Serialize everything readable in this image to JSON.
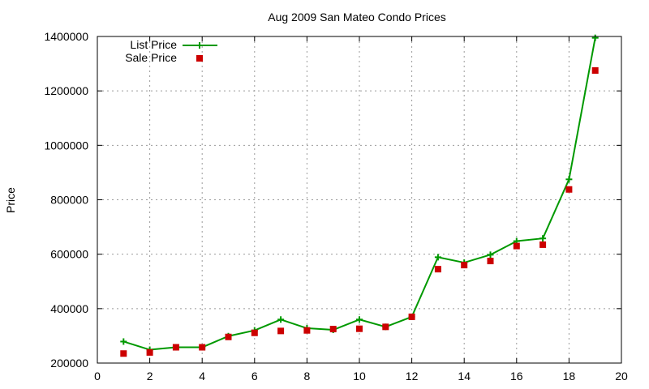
{
  "chart_data": {
    "type": "line",
    "title": "Aug 2009 San Mateo Condo Prices",
    "xlabel": "",
    "ylabel": "Price",
    "xlim": [
      0,
      20
    ],
    "ylim": [
      200000,
      1400000
    ],
    "x_ticks": [
      0,
      2,
      4,
      6,
      8,
      10,
      12,
      14,
      16,
      18,
      20
    ],
    "y_ticks": [
      200000,
      400000,
      600000,
      800000,
      1000000,
      1200000,
      1400000
    ],
    "grid": true,
    "legend_position": "top-left",
    "x": [
      1,
      2,
      3,
      4,
      5,
      6,
      7,
      8,
      9,
      10,
      11,
      12,
      13,
      14,
      15,
      16,
      17,
      18,
      19
    ],
    "series": [
      {
        "name": "List Price",
        "style": "line-plus",
        "color": "#009900",
        "values": [
          279000,
          249000,
          258000,
          258000,
          299000,
          320000,
          360000,
          328000,
          322000,
          360000,
          333000,
          370000,
          589000,
          569000,
          598000,
          648000,
          658000,
          875000,
          1395000
        ]
      },
      {
        "name": "Sale Price",
        "style": "square-markers",
        "color": "#cc0000",
        "values": [
          235000,
          239000,
          258000,
          258000,
          296000,
          311000,
          318000,
          320000,
          325000,
          326000,
          333000,
          370000,
          545000,
          560000,
          575000,
          630000,
          635000,
          838000,
          1275000
        ]
      }
    ]
  }
}
